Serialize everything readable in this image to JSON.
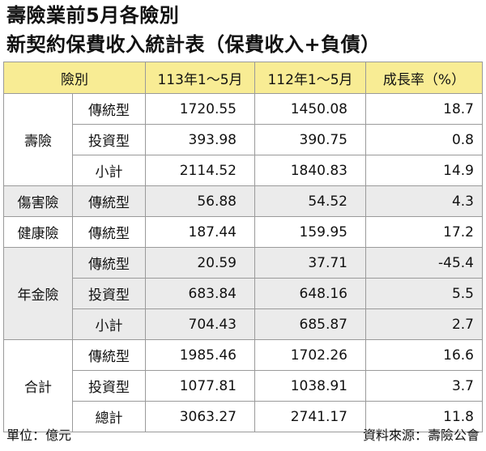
{
  "title_line1": "壽險業前5月各險別",
  "title_line2": "新契約保費收入統計表（保費收入+負債）",
  "table": {
    "headers": [
      "險別",
      "113年1～5月",
      "112年1～5月",
      "成長率（%）"
    ],
    "groups": [
      {
        "name": "壽險",
        "rows": [
          {
            "sub": "傳統型",
            "y113": "1720.55",
            "y112": "1450.08",
            "rate": "18.7"
          },
          {
            "sub": "投資型",
            "y113": "393.98",
            "y112": "390.75",
            "rate": "0.8"
          },
          {
            "sub": "小計",
            "y113": "2114.52",
            "y112": "1840.83",
            "rate": "14.9"
          }
        ]
      },
      {
        "name": "傷害險",
        "rows": [
          {
            "sub": "傳統型",
            "y113": "56.88",
            "y112": "54.52",
            "rate": "4.3"
          }
        ]
      },
      {
        "name": "健康險",
        "rows": [
          {
            "sub": "傳統型",
            "y113": "187.44",
            "y112": "159.95",
            "rate": "17.2"
          }
        ]
      },
      {
        "name": "年金險",
        "rows": [
          {
            "sub": "傳統型",
            "y113": "20.59",
            "y112": "37.71",
            "rate": "-45.4"
          },
          {
            "sub": "投資型",
            "y113": "683.84",
            "y112": "648.16",
            "rate": "5.5"
          },
          {
            "sub": "小計",
            "y113": "704.43",
            "y112": "685.87",
            "rate": "2.7"
          }
        ]
      },
      {
        "name": "合計",
        "rows": [
          {
            "sub": "傳統型",
            "y113": "1985.46",
            "y112": "1702.26",
            "rate": "16.6"
          },
          {
            "sub": "投資型",
            "y113": "1077.81",
            "y112": "1038.91",
            "rate": "3.7"
          },
          {
            "sub": "總計",
            "y113": "3063.27",
            "y112": "2741.17",
            "rate": "11.8"
          }
        ]
      }
    ]
  },
  "unit_note": "單位：億元",
  "source_note": "資料來源：壽險公會",
  "colors": {
    "header_bg": "#f8ec94",
    "shaded_row_bg": "#ebebeb",
    "border": "#9a9a9a"
  }
}
